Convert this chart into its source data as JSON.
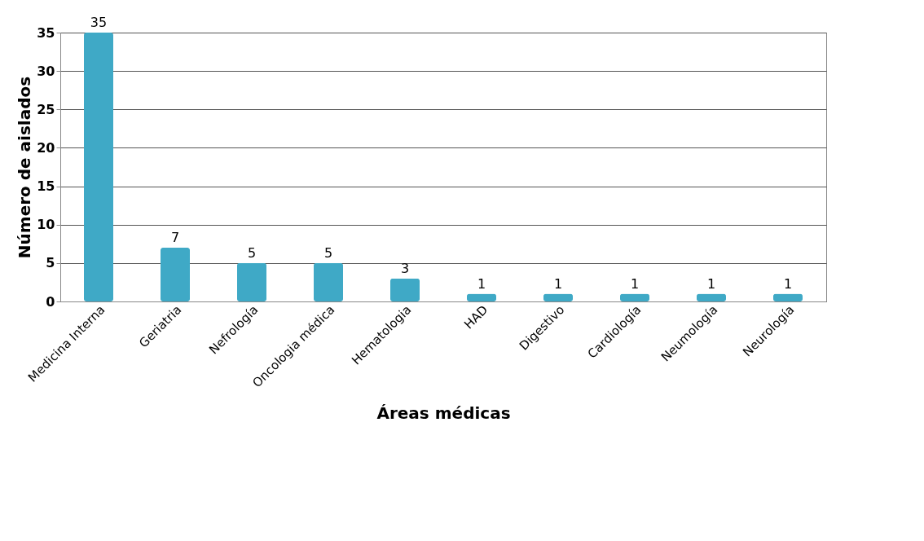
{
  "chart_data": {
    "type": "bar",
    "categories": [
      "Medicina Interna",
      "Geriatria",
      "Nefrología",
      "Oncologia médica",
      "Hematologia",
      "HAD",
      "Digestivo",
      "Cardiología",
      "Neumología",
      "Neurología"
    ],
    "values": [
      35,
      7,
      5,
      5,
      3,
      1,
      1,
      1,
      1,
      1
    ],
    "color": "#3fa9c6",
    "xlabel": "Áreas médicas",
    "ylabel": "Número de aislados",
    "ylim": [
      0,
      35
    ],
    "yticks": [
      0,
      5,
      10,
      15,
      20,
      25,
      30,
      35
    ],
    "grid": "y",
    "data_labels": true
  }
}
